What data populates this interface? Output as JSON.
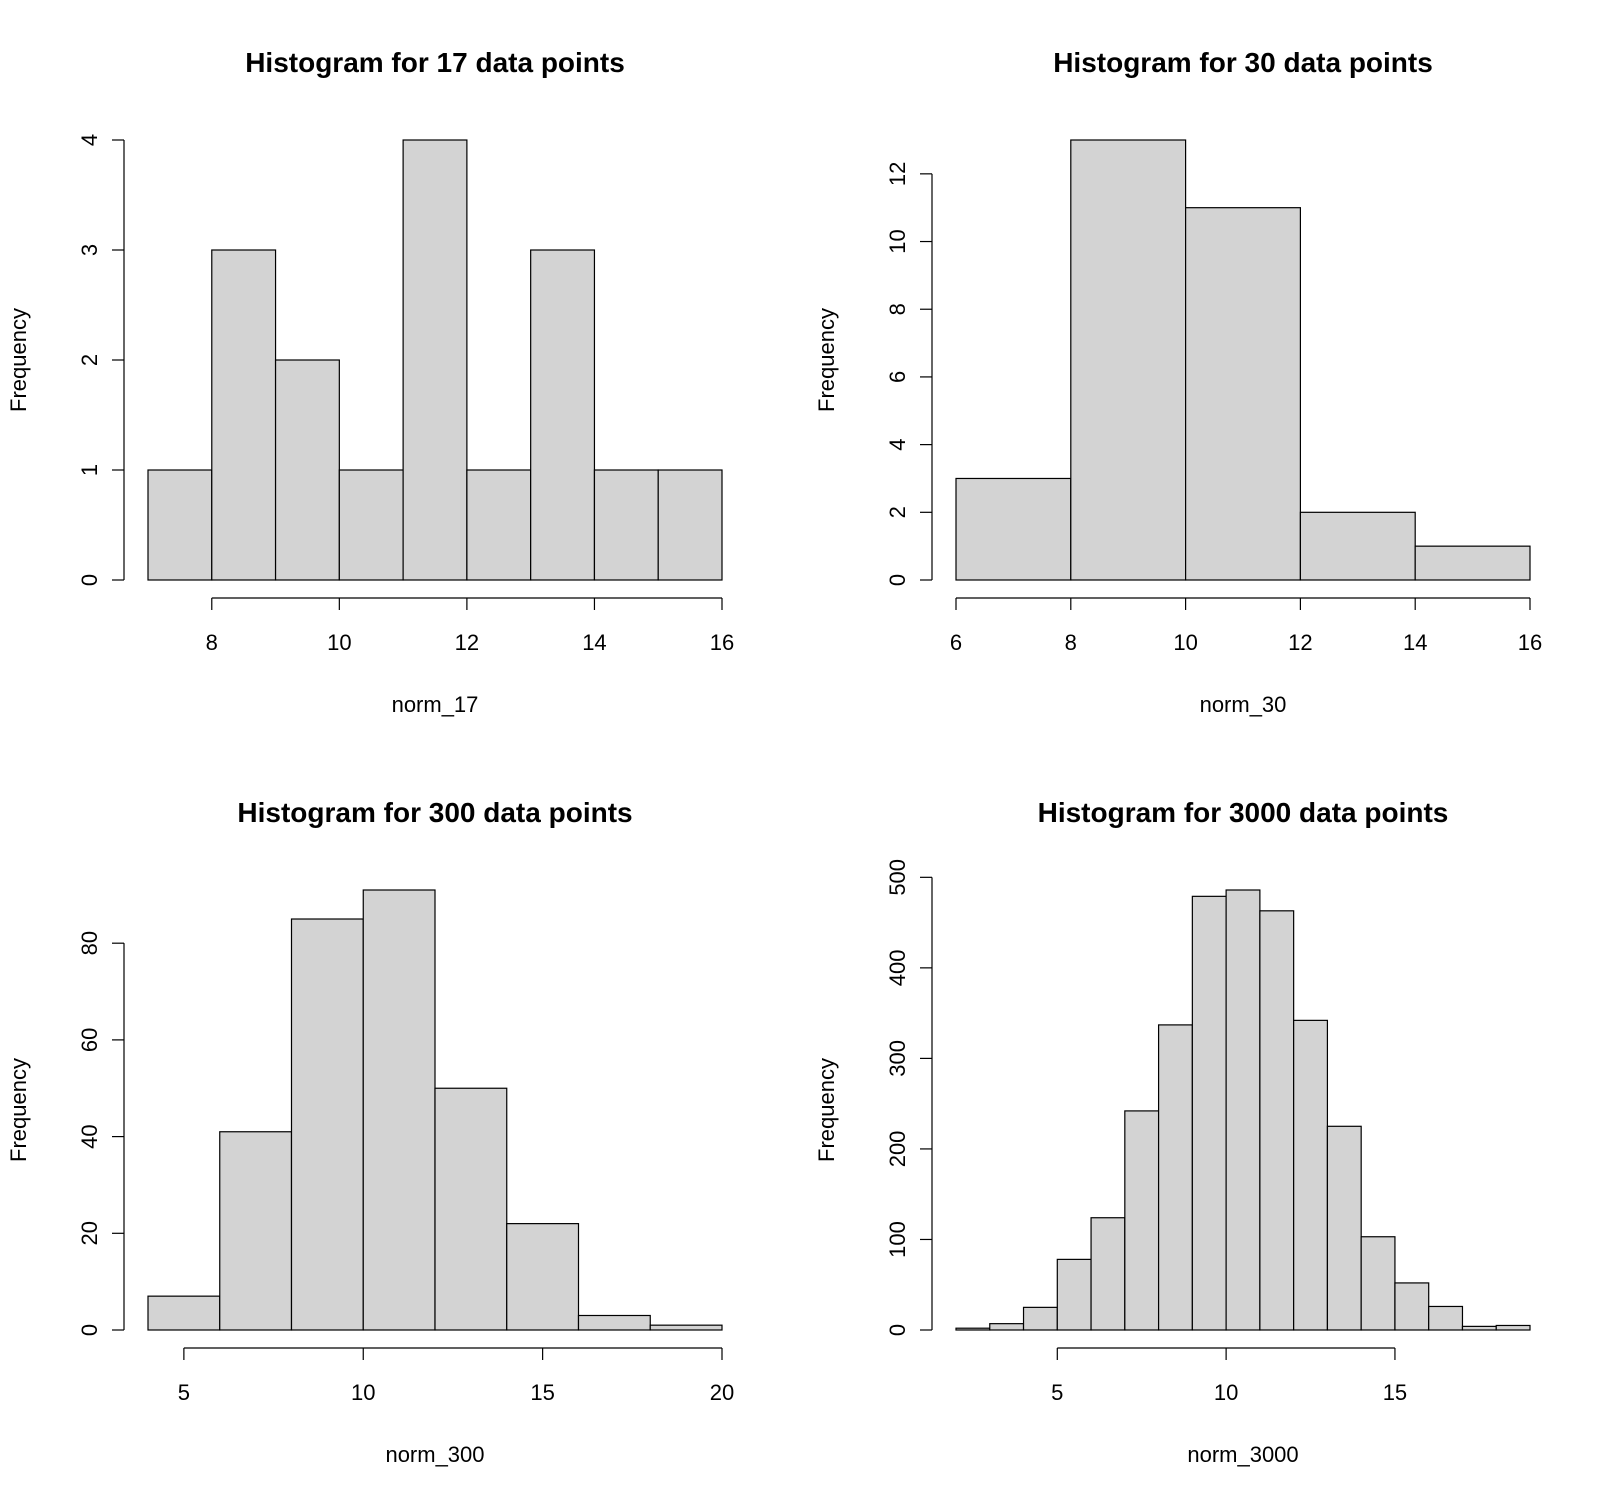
{
  "chart_data": [
    {
      "type": "histogram",
      "title": "Histogram for 17 data points",
      "xlabel": "norm_17",
      "ylabel": "Frequency",
      "bins": [
        7,
        8,
        9,
        10,
        11,
        12,
        13,
        14,
        15,
        16
      ],
      "counts": [
        1,
        3,
        2,
        1,
        4,
        1,
        3,
        1,
        1
      ],
      "xlim": [
        7,
        16
      ],
      "xticks": [
        8,
        10,
        12,
        14,
        16
      ],
      "ylim": [
        0,
        4
      ],
      "yticks": [
        0,
        1,
        2,
        3,
        4
      ],
      "color": "#d3d3d3"
    },
    {
      "type": "histogram",
      "title": "Histogram for 30 data points",
      "xlabel": "norm_30",
      "ylabel": "Frequency",
      "bins": [
        6,
        8,
        10,
        12,
        14,
        16
      ],
      "counts": [
        3,
        13,
        11,
        2,
        1
      ],
      "xlim": [
        6,
        16
      ],
      "xticks": [
        6,
        8,
        10,
        12,
        14,
        16
      ],
      "ylim": [
        0,
        13
      ],
      "yticks": [
        0,
        2,
        4,
        6,
        8,
        10,
        12
      ],
      "color": "#d3d3d3"
    },
    {
      "type": "histogram",
      "title": "Histogram for 300 data points",
      "xlabel": "norm_300",
      "ylabel": "Frequency",
      "bins": [
        4,
        6,
        8,
        10,
        12,
        14,
        16,
        18,
        20
      ],
      "counts": [
        7,
        41,
        85,
        91,
        50,
        22,
        3,
        1
      ],
      "xlim": [
        4,
        20
      ],
      "xticks": [
        5,
        10,
        15,
        20
      ],
      "ylim": [
        0,
        91
      ],
      "yticks": [
        0,
        20,
        40,
        60,
        80
      ],
      "color": "#d3d3d3"
    },
    {
      "type": "histogram",
      "title": "Histogram for 3000 data points",
      "xlabel": "norm_3000",
      "ylabel": "Frequency",
      "bins": [
        2,
        3,
        4,
        5,
        6,
        7,
        8,
        9,
        10,
        11,
        12,
        13,
        14,
        15,
        16,
        17,
        18,
        19
      ],
      "counts": [
        2,
        7,
        25,
        78,
        124,
        242,
        337,
        479,
        486,
        463,
        342,
        225,
        103,
        52,
        26,
        4,
        5
      ],
      "xlim": [
        2,
        19
      ],
      "xticks": [
        5,
        10,
        15
      ],
      "ylim": [
        0,
        486
      ],
      "yticks": [
        0,
        100,
        200,
        300,
        400,
        500
      ],
      "color": "#d3d3d3"
    }
  ]
}
